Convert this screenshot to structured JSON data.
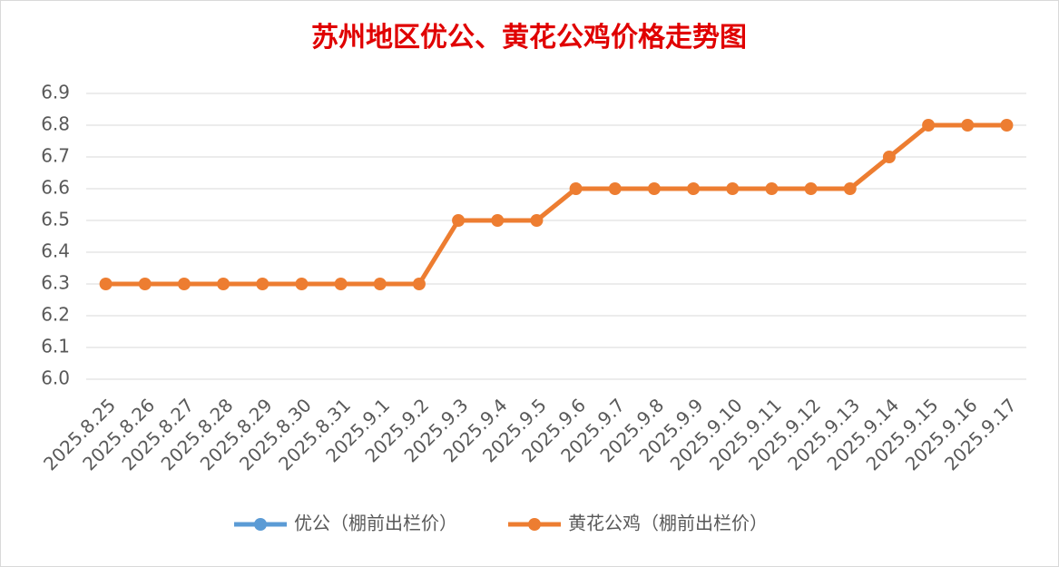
{
  "chart_data": {
    "type": "line",
    "title": "苏州地区优公、黄花公鸡价格走势图",
    "categories": [
      "2025.8.25",
      "2025.8.26",
      "2025.8.27",
      "2025.8.28",
      "2025.8.29",
      "2025.8.30",
      "2025.8.31",
      "2025.9.1",
      "2025.9.2",
      "2025.9.3",
      "2025.9.4",
      "2025.9.5",
      "2025.9.6",
      "2025.9.7",
      "2025.9.8",
      "2025.9.9",
      "2025.9.10",
      "2025.9.11",
      "2025.9.12",
      "2025.9.13",
      "2025.9.14",
      "2025.9.15",
      "2025.9.16",
      "2025.9.17"
    ],
    "series": [
      {
        "name": "优公（棚前出栏价）",
        "color": "#5b9bd5",
        "values": [
          null,
          null,
          null,
          null,
          null,
          null,
          null,
          null,
          null,
          null,
          null,
          null,
          null,
          null,
          null,
          null,
          null,
          null,
          null,
          null,
          null,
          null,
          null,
          null
        ]
      },
      {
        "name": "黄花公鸡（棚前出栏价）",
        "color": "#ed7d31",
        "values": [
          6.3,
          6.3,
          6.3,
          6.3,
          6.3,
          6.3,
          6.3,
          6.3,
          6.3,
          6.5,
          6.5,
          6.5,
          6.6,
          6.6,
          6.6,
          6.6,
          6.6,
          6.6,
          6.6,
          6.6,
          6.7,
          6.8,
          6.8,
          6.8
        ]
      }
    ],
    "ylim": [
      6,
      6.9
    ],
    "yticks": [
      {
        "value": 6,
        "label": "6.0"
      },
      6.1,
      6.2,
      6.3,
      6.4,
      6.5,
      6.6,
      6.7,
      6.8,
      6.9
    ],
    "grid": true,
    "legend": "bottom"
  }
}
